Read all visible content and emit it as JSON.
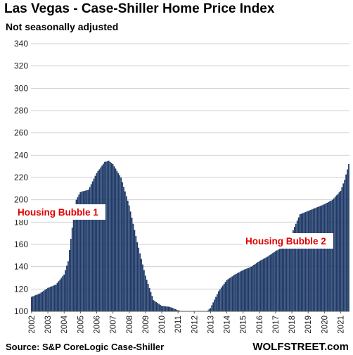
{
  "header": {
    "title": "Las Vegas - Case-Shiller Home Price Index",
    "subtitle": "Not seasonally adjusted"
  },
  "footer": {
    "source": "Source: S&P CoreLogic Case-Shiller",
    "brand": "WOLFSTREET.com"
  },
  "chart_data": {
    "type": "bar",
    "title": "Las Vegas - Case-Shiller Home Price Index",
    "subtitle": "Not seasonally adjusted",
    "frequency": "monthly",
    "ylim": [
      100,
      340
    ],
    "y_ticks": [
      100,
      120,
      140,
      160,
      180,
      200,
      220,
      240,
      260,
      280,
      300,
      320,
      340
    ],
    "x_tick_labels": [
      "2002",
      "2003",
      "2004",
      "2005",
      "2006",
      "2007",
      "2008",
      "2009",
      "2010",
      "2011",
      "2012",
      "2013",
      "2014",
      "2015",
      "2016",
      "2017",
      "2018",
      "2019",
      "2020",
      "2021"
    ],
    "grid": true,
    "bar_color": "#1f3a68",
    "annotations": [
      "Housing Bubble 1",
      "Housing Bubble 2"
    ],
    "series": [
      {
        "start": "2002-01",
        "end": "2021-07",
        "anchors": [
          [
            "2002-01",
            113
          ],
          [
            "2002-07",
            116
          ],
          [
            "2003-01",
            121
          ],
          [
            "2003-07",
            124
          ],
          [
            "2004-01",
            133
          ],
          [
            "2004-04",
            145
          ],
          [
            "2004-07",
            175
          ],
          [
            "2004-10",
            200
          ],
          [
            "2005-01",
            207
          ],
          [
            "2005-07",
            209
          ],
          [
            "2006-01",
            224
          ],
          [
            "2006-07",
            234
          ],
          [
            "2006-10",
            235
          ],
          [
            "2007-01",
            232
          ],
          [
            "2007-07",
            220
          ],
          [
            "2008-01",
            195
          ],
          [
            "2008-07",
            162
          ],
          [
            "2009-01",
            132
          ],
          [
            "2009-07",
            110
          ],
          [
            "2010-01",
            105
          ],
          [
            "2010-07",
            104
          ],
          [
            "2011-01",
            101
          ],
          [
            "2011-07",
            99
          ],
          [
            "2012-01",
            97
          ],
          [
            "2012-07",
            96
          ],
          [
            "2013-01",
            103
          ],
          [
            "2013-07",
            118
          ],
          [
            "2014-01",
            128
          ],
          [
            "2014-07",
            133
          ],
          [
            "2015-01",
            137
          ],
          [
            "2015-07",
            140
          ],
          [
            "2016-01",
            145
          ],
          [
            "2016-07",
            149
          ],
          [
            "2017-01",
            154
          ],
          [
            "2017-07",
            158
          ],
          [
            "2018-01",
            170
          ],
          [
            "2018-07",
            187
          ],
          [
            "2019-01",
            190
          ],
          [
            "2019-07",
            193
          ],
          [
            "2020-01",
            196
          ],
          [
            "2020-07",
            200
          ],
          [
            "2021-01",
            208
          ],
          [
            "2021-04",
            218
          ],
          [
            "2021-07",
            232
          ]
        ]
      }
    ]
  }
}
